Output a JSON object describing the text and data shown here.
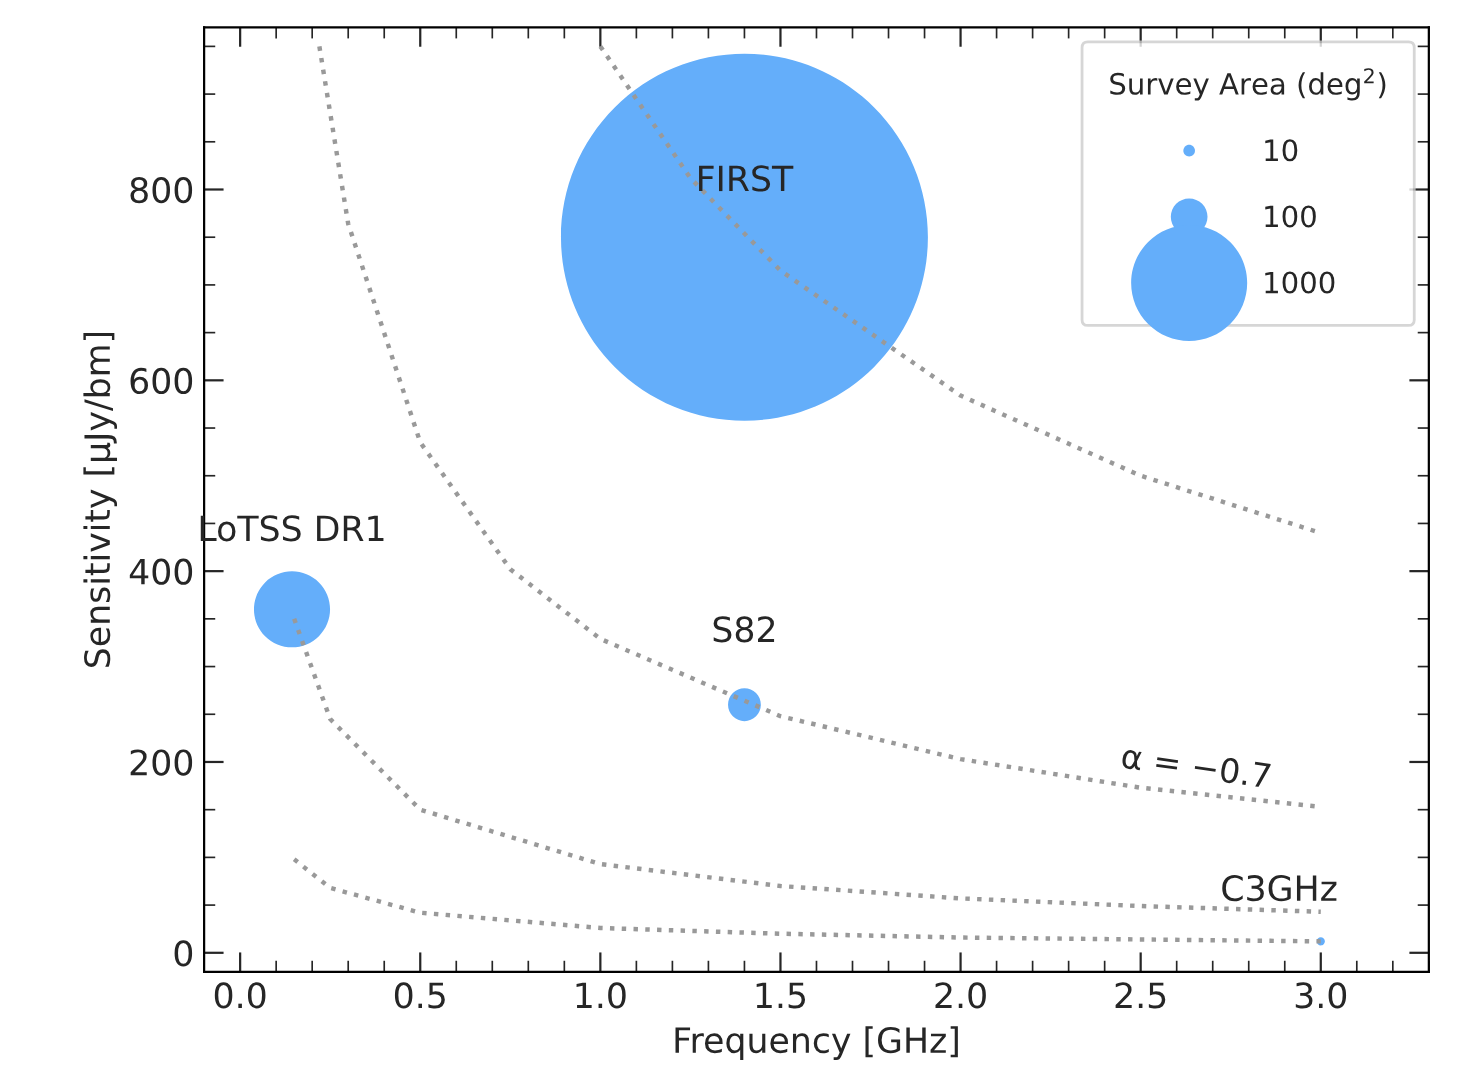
{
  "chart_data": {
    "type": "bubble",
    "xlabel": "Frequency [GHz]",
    "ylabel": "Sensitivity [µJy/bm]",
    "legend_title": "Survey Area (deg$^{2}$)",
    "xlim": [
      -0.1,
      3.3
    ],
    "ylim": [
      -20,
      970
    ],
    "xticks": [
      {
        "value": 0,
        "label": "0.0"
      },
      {
        "value": 0.5,
        "label": "0.5"
      },
      {
        "value": 1,
        "label": "1.0"
      },
      {
        "value": 1.5,
        "label": "1.5"
      },
      {
        "value": 2,
        "label": "2.0"
      },
      {
        "value": 2.5,
        "label": "2.5"
      },
      {
        "value": 3,
        "label": "3.0"
      }
    ],
    "yticks": [
      0,
      200,
      400,
      600,
      800
    ],
    "grid": false,
    "size_legend": [
      10,
      100,
      1000
    ],
    "series": [
      {
        "color": "#64aefa",
        "x": [
          0.144,
          1.4,
          1.4,
          3.0
        ],
        "values": [
          360,
          750,
          260,
          12
        ],
        "sizes": [
          430,
          10000,
          80,
          5
        ]
      },
      {
        "type": "line",
        "color": "#999999",
        "line_style": "dotted",
        "x": [
          1.0,
          1.25,
          1.5,
          2.0,
          2.5,
          3.0
        ],
        "values": [
          950,
          812,
          715,
          584,
          500,
          440
        ]
      },
      {
        "type": "line",
        "color": "#999999",
        "line_style": "dotted",
        "x": [
          0.22,
          0.3,
          0.5,
          0.75,
          1.0,
          1.5,
          2.0,
          2.5,
          3.0
        ],
        "values": [
          950,
          764,
          535,
          402,
          329,
          248,
          203,
          173,
          153
        ]
      },
      {
        "type": "line",
        "color": "#999999",
        "line_style": "dotted",
        "x": [
          0.15,
          0.25,
          0.5,
          1.0,
          1.5,
          2.0,
          2.5,
          3.0
        ],
        "values": [
          350,
          245,
          150,
          93,
          70,
          57,
          49,
          43
        ]
      },
      {
        "type": "line",
        "color": "#999999",
        "line_style": "dotted",
        "x": [
          0.15,
          0.25,
          0.5,
          1.0,
          1.5,
          2.0,
          2.5,
          3.0
        ],
        "values": [
          98,
          68,
          42,
          26,
          20,
          16,
          14,
          12
        ]
      }
    ],
    "annotations": [
      {
        "text": "LoTSS DR1",
        "x": 0.144,
        "y": 360
      },
      {
        "text": "FIRST",
        "x": 1.4,
        "y": 750
      },
      {
        "text": "S82",
        "x": 1.4,
        "y": 260
      },
      {
        "text": "C3GHz",
        "x": 3.0,
        "y": 12
      },
      "α = −0.7"
    ]
  }
}
